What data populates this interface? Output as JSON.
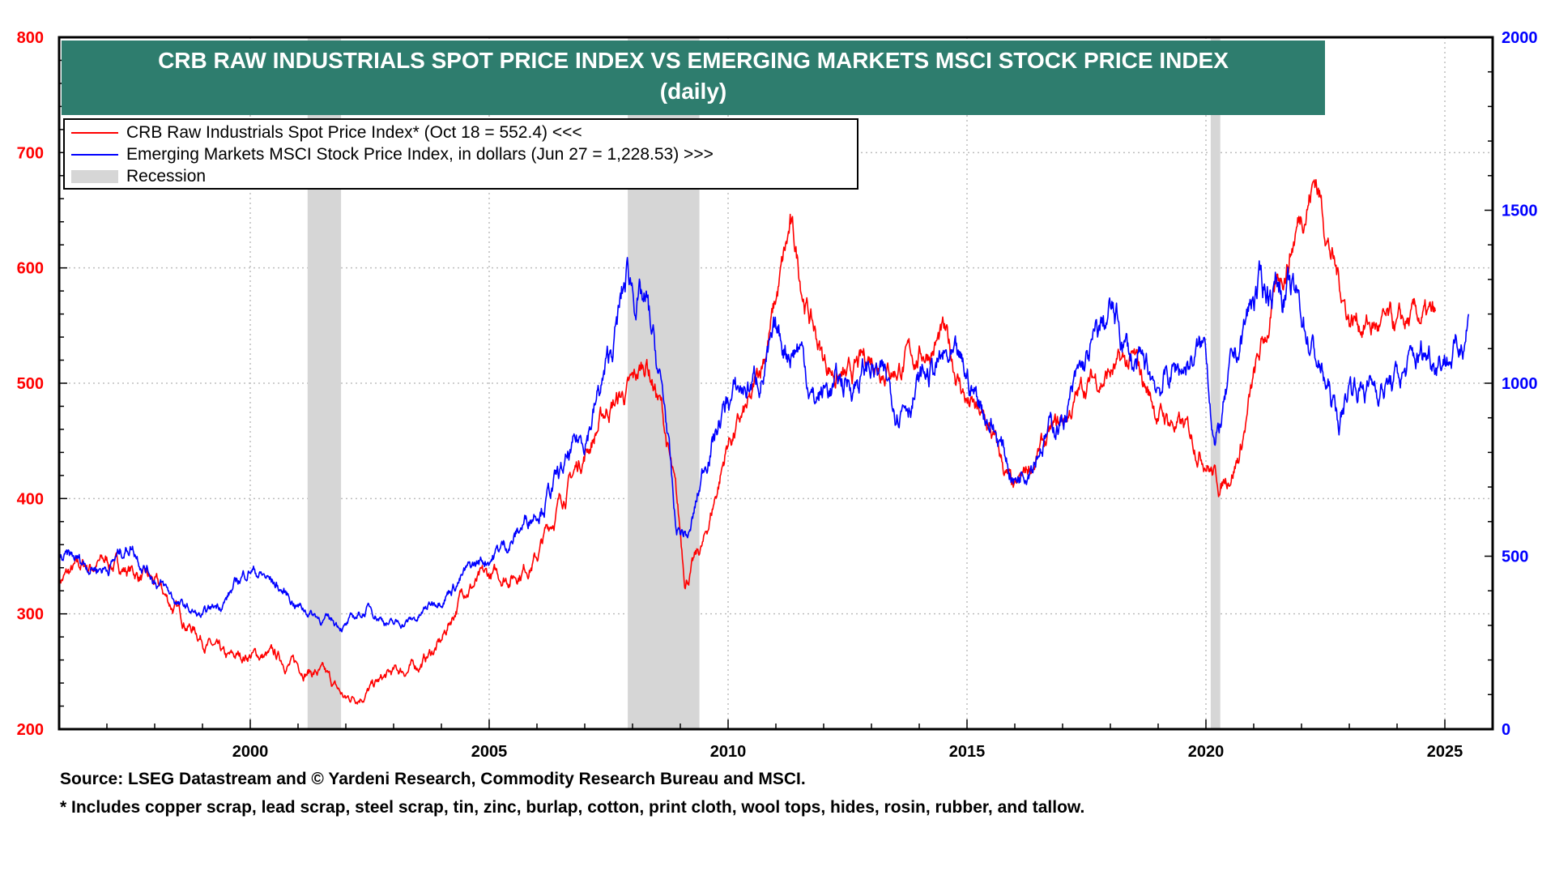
{
  "chart_data": {
    "type": "line",
    "title": "CRB RAW INDUSTRIALS SPOT PRICE INDEX VS EMERGING MARKETS MSCI STOCK PRICE INDEX",
    "subtitle": "(daily)",
    "x_range": [
      1996.0,
      2026.0
    ],
    "x_ticks": [
      "2000",
      "2005",
      "2010",
      "2015",
      "2020",
      "2025"
    ],
    "y_left": {
      "ticks": [
        "200",
        "300",
        "400",
        "500",
        "600",
        "700",
        "800"
      ],
      "range": [
        200,
        800
      ],
      "color": "#ff0000"
    },
    "y_right": {
      "ticks": [
        "0",
        "500",
        "1000",
        "1500",
        "2000"
      ],
      "range": [
        0,
        2000
      ],
      "color": "#0000ff"
    },
    "grid": true,
    "legend_position": "top-left",
    "legend_recession_label": "Recession",
    "recessions": [
      [
        2001.2,
        2001.9
      ],
      [
        2007.9,
        2009.4
      ],
      [
        2020.1,
        2020.3
      ]
    ],
    "series": [
      {
        "name": "CRB Raw Industrials Spot Price Index* (Oct 18 = 552.4) <<<",
        "axis": "left",
        "color": "#ff0000",
        "points": [
          [
            1996.0,
            330
          ],
          [
            1996.5,
            340
          ],
          [
            1997.0,
            345
          ],
          [
            1997.5,
            338
          ],
          [
            1998.0,
            325
          ],
          [
            1998.5,
            300
          ],
          [
            1999.0,
            280
          ],
          [
            1999.5,
            258
          ],
          [
            2000.0,
            265
          ],
          [
            2000.5,
            262
          ],
          [
            2001.0,
            255
          ],
          [
            2001.5,
            248
          ],
          [
            2002.0,
            225
          ],
          [
            2002.5,
            235
          ],
          [
            2003.0,
            248
          ],
          [
            2003.5,
            255
          ],
          [
            2004.0,
            275
          ],
          [
            2004.5,
            325
          ],
          [
            2005.0,
            330
          ],
          [
            2005.5,
            335
          ],
          [
            2006.0,
            350
          ],
          [
            2006.5,
            400
          ],
          [
            2007.0,
            440
          ],
          [
            2007.5,
            480
          ],
          [
            2008.0,
            495
          ],
          [
            2008.3,
            520
          ],
          [
            2008.6,
            480
          ],
          [
            2008.9,
            400
          ],
          [
            2009.1,
            330
          ],
          [
            2009.5,
            360
          ],
          [
            2010.0,
            450
          ],
          [
            2010.5,
            480
          ],
          [
            2011.0,
            570
          ],
          [
            2011.3,
            630
          ],
          [
            2011.7,
            560
          ],
          [
            2012.0,
            520
          ],
          [
            2012.5,
            500
          ],
          [
            2013.0,
            525
          ],
          [
            2013.5,
            515
          ],
          [
            2014.0,
            525
          ],
          [
            2014.5,
            540
          ],
          [
            2015.0,
            485
          ],
          [
            2015.5,
            455
          ],
          [
            2016.0,
            400
          ],
          [
            2016.5,
            440
          ],
          [
            2017.0,
            465
          ],
          [
            2017.5,
            500
          ],
          [
            2018.0,
            510
          ],
          [
            2018.5,
            515
          ],
          [
            2019.0,
            475
          ],
          [
            2019.5,
            460
          ],
          [
            2020.0,
            440
          ],
          [
            2020.3,
            410
          ],
          [
            2020.7,
            440
          ],
          [
            2021.0,
            500
          ],
          [
            2021.5,
            580
          ],
          [
            2022.0,
            650
          ],
          [
            2022.3,
            680
          ],
          [
            2022.7,
            600
          ],
          [
            2023.0,
            560
          ],
          [
            2023.5,
            550
          ],
          [
            2024.0,
            545
          ],
          [
            2024.5,
            555
          ],
          [
            2024.8,
            552
          ]
        ]
      },
      {
        "name": "Emerging Markets  MSCI Stock Price Index, in dollars (Jun 27 = 1,228.53) >>>",
        "axis": "right",
        "color": "#0000ff",
        "points": [
          [
            1996.0,
            490
          ],
          [
            1996.5,
            480
          ],
          [
            1997.0,
            470
          ],
          [
            1997.5,
            540
          ],
          [
            1998.0,
            440
          ],
          [
            1998.5,
            360
          ],
          [
            1999.0,
            320
          ],
          [
            1999.5,
            380
          ],
          [
            2000.0,
            470
          ],
          [
            2000.5,
            420
          ],
          [
            2001.0,
            360
          ],
          [
            2001.5,
            320
          ],
          [
            2002.0,
            300
          ],
          [
            2002.5,
            350
          ],
          [
            2003.0,
            300
          ],
          [
            2003.5,
            320
          ],
          [
            2004.0,
            390
          ],
          [
            2004.5,
            450
          ],
          [
            2005.0,
            500
          ],
          [
            2005.5,
            550
          ],
          [
            2006.0,
            650
          ],
          [
            2006.5,
            730
          ],
          [
            2007.0,
            850
          ],
          [
            2007.5,
            1050
          ],
          [
            2007.9,
            1310
          ],
          [
            2008.3,
            1200
          ],
          [
            2008.7,
            900
          ],
          [
            2008.9,
            570
          ],
          [
            2009.2,
            560
          ],
          [
            2009.6,
            820
          ],
          [
            2010.0,
            950
          ],
          [
            2010.5,
            1000
          ],
          [
            2011.0,
            1100
          ],
          [
            2011.5,
            1120
          ],
          [
            2011.8,
            950
          ],
          [
            2012.0,
            980
          ],
          [
            2012.5,
            1000
          ],
          [
            2013.0,
            1050
          ],
          [
            2013.5,
            950
          ],
          [
            2014.0,
            1000
          ],
          [
            2014.5,
            1060
          ],
          [
            2015.0,
            1000
          ],
          [
            2015.5,
            900
          ],
          [
            2016.0,
            720
          ],
          [
            2016.5,
            840
          ],
          [
            2017.0,
            900
          ],
          [
            2017.5,
            1050
          ],
          [
            2018.0,
            1200
          ],
          [
            2018.5,
            1050
          ],
          [
            2019.0,
            1000
          ],
          [
            2019.5,
            1050
          ],
          [
            2020.0,
            1100
          ],
          [
            2020.2,
            820
          ],
          [
            2020.5,
            1000
          ],
          [
            2021.0,
            1250
          ],
          [
            2021.5,
            1300
          ],
          [
            2022.0,
            1200
          ],
          [
            2022.5,
            1000
          ],
          [
            2022.8,
            880
          ],
          [
            2023.0,
            1000
          ],
          [
            2023.5,
            1000
          ],
          [
            2024.0,
            1000
          ],
          [
            2024.5,
            1080
          ],
          [
            2025.0,
            1100
          ],
          [
            2025.3,
            1090
          ],
          [
            2025.5,
            1228
          ]
        ]
      }
    ],
    "footnotes": [
      "Source: LSEG Datastream and © Yardeni Research, Commodity Research Bureau and MSCI.",
      "* Includes copper scrap, lead scrap, steel scrap, tin, zinc, burlap, cotton, print cloth, wool tops, hides, rosin, rubber, and tallow."
    ]
  }
}
